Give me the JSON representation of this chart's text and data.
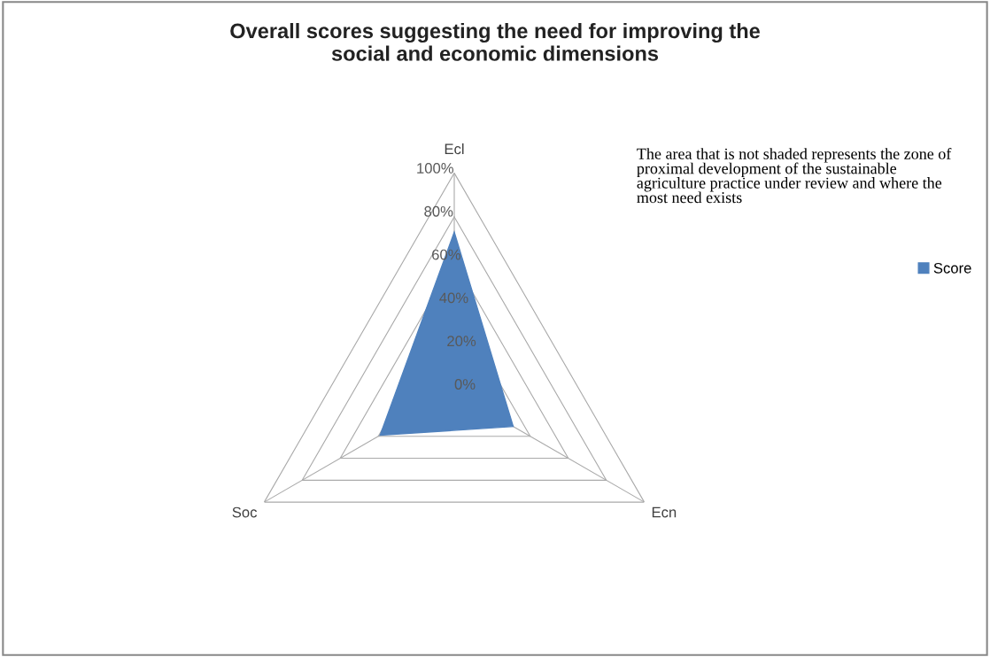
{
  "chart_data": {
    "type": "radar",
    "title": "Overall scores suggesting the need for improving the\nsocial and economic dimensions",
    "categories": [
      "Ecl",
      "Ecn",
      "Soc"
    ],
    "series": [
      {
        "name": "Score",
        "color": "#4f81bd",
        "values": [
          73,
          31,
          39
        ]
      }
    ],
    "ylim": [
      0,
      100
    ],
    "yticks": [
      {
        "value": 0,
        "label": "0%"
      },
      {
        "value": 20,
        "label": "20%"
      },
      {
        "value": 40,
        "label": "40%"
      },
      {
        "value": 60,
        "label": "60%"
      },
      {
        "value": 80,
        "label": "80%"
      },
      {
        "value": 100,
        "label": "100%"
      }
    ],
    "grid": true,
    "legend": "right",
    "annotations": [
      "The area that is not shaded represents the zone of proximal development of the sustainable agriculture practice under review and where the most need exists"
    ]
  }
}
